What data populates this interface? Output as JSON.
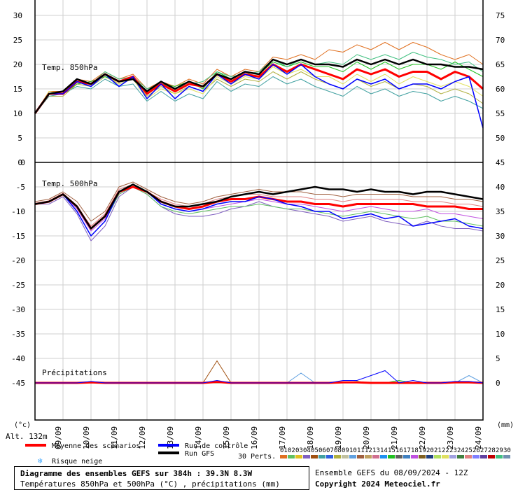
{
  "title": "Diagramme des ensembles GEFS sur 384h : 39.3N 8.3W",
  "subtitle": "Températures 850hPa et 500hPa (°C) , précipitations (mm)",
  "ensemble_info": "Ensemble GEFS du 08/09/2024 - 12Z",
  "copyright": "Copyright 2024 Meteociel.fr",
  "altitude": "Alt. 132m",
  "unit_left": "(°c)",
  "unit_right": "(mm)",
  "legend": {
    "mean": "Moyenne des scénarios",
    "control": "Run de contrôle",
    "gfs": "Run GFS",
    "snow": "Risque neige",
    "perts": "30 Perts."
  },
  "colors": {
    "mean": "#ff0000",
    "control": "#0000ff",
    "gfs": "#000000",
    "snow": "#44aaff",
    "members": [
      "#e07020",
      "#60c060",
      "#e0c020",
      "#8060c0",
      "#a05010",
      "#40a0a0",
      "#3060e0",
      "#b0b040",
      "#c0c0a0",
      "#60a0e0",
      "#a06040",
      "#c0a060",
      "#d07090",
      "#2090f0",
      "#20c020",
      "#606060",
      "#4080c0",
      "#c050e0",
      "#806020",
      "#204080",
      "#b0e060",
      "#e0e060",
      "#a0a0e0",
      "#408040",
      "#e08080",
      "#8080ff",
      "#6040a0",
      "#c00000",
      "#40c080",
      "#7090b0"
    ]
  },
  "dates": [
    "09/09",
    "10/09",
    "11/09",
    "12/09",
    "13/09",
    "14/09",
    "15/09",
    "16/09",
    "17/09",
    "18/09",
    "19/09",
    "20/09",
    "21/09",
    "22/09",
    "23/09",
    "24/09"
  ],
  "pert_labels": [
    "01",
    "02",
    "03",
    "04",
    "05",
    "06",
    "07",
    "08",
    "09",
    "10",
    "11",
    "12",
    "13",
    "14",
    "15",
    "16",
    "17",
    "18",
    "19",
    "20",
    "21",
    "22",
    "23",
    "24",
    "25",
    "26",
    "27",
    "28",
    "29",
    "30"
  ],
  "chart_data": [
    {
      "type": "line",
      "title": "Temp. 850hPa",
      "ylim": [
        0,
        30
      ],
      "yticks_left": [
        0,
        5,
        10,
        15,
        20,
        25,
        30
      ],
      "yticks_right": [
        50,
        55,
        60,
        65,
        70,
        75
      ],
      "x_unit": "day index (0 = 08/09 12Z)",
      "x": [
        0,
        0.5,
        1,
        1.5,
        2,
        2.5,
        3,
        3.5,
        4,
        4.5,
        5,
        5.5,
        6,
        6.5,
        7,
        7.5,
        8,
        8.5,
        9,
        9.5,
        10,
        10.5,
        11,
        11.5,
        12,
        12.5,
        13,
        13.5,
        14,
        14.5,
        15,
        15.5,
        16
      ],
      "series": [
        {
          "name": "Moyenne des scénarios",
          "values": [
            10,
            14,
            14,
            16.5,
            16,
            18,
            16.5,
            17.5,
            14,
            16,
            14.5,
            16,
            15.5,
            18,
            16.5,
            18,
            17.5,
            20,
            18.5,
            20,
            19,
            18,
            17,
            19,
            18,
            19,
            17.5,
            18.5,
            18.5,
            17,
            18.5,
            17.5,
            15
          ]
        },
        {
          "name": "Run de contrôle",
          "values": [
            10,
            14,
            14,
            16.5,
            15.5,
            18,
            15.5,
            17.5,
            13,
            16,
            13,
            15.5,
            14.5,
            18,
            16,
            18,
            17,
            20,
            18,
            20,
            17.5,
            16,
            15,
            17,
            16,
            17,
            15,
            16,
            16,
            15,
            16.5,
            17.5,
            7
          ]
        },
        {
          "name": "Run GFS",
          "values": [
            10,
            14,
            14.5,
            17,
            16,
            18,
            16.5,
            17,
            14.5,
            16.5,
            15,
            16.5,
            15.5,
            18,
            17,
            18.5,
            18,
            21,
            20,
            21,
            20,
            20,
            19.5,
            21,
            20,
            21,
            20,
            21,
            20,
            20,
            19.5,
            19.5,
            19
          ]
        },
        {
          "name": "",
          "values": [
            10,
            14.5,
            14.5,
            17,
            16.5,
            18.5,
            17,
            18,
            15,
            16.5,
            15.5,
            17,
            16,
            19,
            17.5,
            19,
            18.5,
            21.5,
            21,
            22,
            21,
            23,
            22.5,
            24,
            23,
            24.5,
            23,
            24.5,
            23.5,
            22,
            21,
            22,
            20
          ]
        },
        {
          "name": "",
          "values": [
            10,
            13.5,
            13.5,
            16,
            15.5,
            17.5,
            16,
            17,
            13.5,
            15.5,
            14,
            15.5,
            14.5,
            17,
            15.5,
            17,
            16.5,
            18.5,
            17,
            18.5,
            17,
            16,
            15,
            17,
            15.5,
            16.5,
            15,
            16,
            15.5,
            14,
            15,
            14,
            12
          ]
        },
        {
          "name": "",
          "values": [
            10,
            14,
            14,
            16,
            16.5,
            17.5,
            16.5,
            17.5,
            14.5,
            16,
            15.5,
            16.5,
            15,
            18.5,
            17,
            18.5,
            18,
            20.5,
            19.5,
            20.5,
            19.5,
            19.5,
            18.5,
            20.5,
            19,
            20.5,
            19,
            20,
            20,
            19,
            20.5,
            19,
            17.5
          ]
        },
        {
          "name": "",
          "values": [
            10,
            14.5,
            14,
            16.5,
            15.5,
            18,
            16,
            17,
            13,
            15,
            14,
            15,
            14,
            17.5,
            16,
            17.5,
            17,
            19.5,
            18,
            19,
            17.5,
            17.5,
            16,
            18,
            16.5,
            18,
            16,
            17.5,
            16.5,
            15.5,
            16.5,
            15.5,
            13.5
          ]
        },
        {
          "name": "",
          "values": [
            10,
            14,
            14.5,
            16.5,
            16,
            18.5,
            17,
            17.5,
            15,
            16,
            15,
            16,
            16.5,
            18.5,
            17.5,
            18,
            18.5,
            21,
            19.5,
            21,
            20,
            20.5,
            20,
            22,
            21,
            22,
            21,
            22.5,
            21.5,
            21,
            20,
            20.5,
            18.5
          ]
        },
        {
          "name": "",
          "values": [
            10,
            13.5,
            14,
            15.5,
            15,
            17,
            15.5,
            16,
            12.5,
            14.5,
            12.5,
            14,
            13,
            16.5,
            14.5,
            16,
            15.5,
            17.5,
            16,
            17,
            15.5,
            14.5,
            13.5,
            15.5,
            14,
            15,
            13.5,
            14.5,
            14,
            12.5,
            13.5,
            12.5,
            11
          ]
        }
      ]
    },
    {
      "type": "line",
      "title": "Temp. 500hPa",
      "ylim": [
        -45,
        0
      ],
      "yticks_left": [
        0,
        -5,
        -10,
        -15,
        -20,
        -25,
        -30,
        -35,
        -40,
        -45
      ],
      "yticks_right": [
        0,
        5,
        10,
        15,
        20,
        25,
        30,
        35,
        40,
        45
      ],
      "x_unit": "day index (0 = 08/09 12Z)",
      "x": [
        0,
        0.5,
        1,
        1.5,
        2,
        2.5,
        3,
        3.5,
        4,
        4.5,
        5,
        5.5,
        6,
        6.5,
        7,
        7.5,
        8,
        8.5,
        9,
        9.5,
        10,
        10.5,
        11,
        11.5,
        12,
        12.5,
        13,
        13.5,
        14,
        14.5,
        15,
        15.5,
        16
      ],
      "series": [
        {
          "name": "Moyenne des scénarios",
          "values": [
            -8.5,
            -8,
            -6.5,
            -9,
            -13.5,
            -11,
            -6,
            -5,
            -6,
            -8,
            -9,
            -9.5,
            -9,
            -8,
            -7.5,
            -7.5,
            -7,
            -7.5,
            -8,
            -8,
            -8.5,
            -8.5,
            -9,
            -8.5,
            -8.5,
            -8.5,
            -8.5,
            -8.5,
            -9,
            -9,
            -9,
            -9.5,
            -9.5
          ]
        },
        {
          "name": "Run de contrôle",
          "values": [
            -8.5,
            -8,
            -6.5,
            -10,
            -15,
            -12,
            -6,
            -4.5,
            -6,
            -8.5,
            -9.5,
            -10,
            -9.5,
            -8.5,
            -8,
            -8,
            -7,
            -7.5,
            -8.5,
            -9,
            -10,
            -10,
            -11.5,
            -11,
            -10.5,
            -11.5,
            -11,
            -13,
            -12.5,
            -12,
            -11.5,
            -13,
            -13.5
          ]
        },
        {
          "name": "Run GFS",
          "values": [
            -8.5,
            -8,
            -6.5,
            -9,
            -13.5,
            -11,
            -6,
            -4.5,
            -6,
            -8,
            -9,
            -9,
            -8.5,
            -8,
            -7,
            -6.5,
            -6,
            -6.5,
            -6,
            -5.5,
            -5,
            -5.5,
            -5.5,
            -6,
            -5.5,
            -6,
            -6,
            -6.5,
            -6,
            -6,
            -6.5,
            -7,
            -7.5
          ]
        },
        {
          "name": "",
          "values": [
            -8.5,
            -8.5,
            -7,
            -10.5,
            -16,
            -13,
            -7,
            -5,
            -6.5,
            -9,
            -10.5,
            -11,
            -11,
            -10.5,
            -9.5,
            -9,
            -8,
            -9,
            -9.5,
            -10,
            -10.5,
            -11,
            -12,
            -11.5,
            -11,
            -12,
            -12.5,
            -13,
            -12,
            -13,
            -13.5,
            -13.5,
            -14
          ]
        },
        {
          "name": "",
          "values": [
            -8,
            -7.5,
            -6,
            -8,
            -12,
            -10,
            -5,
            -4,
            -5.5,
            -7,
            -8,
            -8.5,
            -8,
            -7,
            -6.5,
            -6,
            -5.5,
            -6,
            -6,
            -6,
            -6.5,
            -6.5,
            -7,
            -6.5,
            -6.5,
            -6.5,
            -6.5,
            -7,
            -7,
            -7,
            -7.5,
            -7.5,
            -8
          ]
        },
        {
          "name": "",
          "values": [
            -8.5,
            -8,
            -6.5,
            -9.5,
            -14,
            -11.5,
            -6.5,
            -5,
            -6,
            -8.5,
            -9.5,
            -10,
            -9.5,
            -9,
            -8.5,
            -8,
            -7.5,
            -8,
            -8.5,
            -8.5,
            -9,
            -9.5,
            -10,
            -9.5,
            -9,
            -9.5,
            -10,
            -10,
            -9.5,
            -10.5,
            -10.5,
            -11,
            -11.5
          ]
        },
        {
          "name": "",
          "values": [
            -8.5,
            -8,
            -6.5,
            -9,
            -13,
            -10.5,
            -5.5,
            -4.5,
            -6,
            -7.5,
            -8.5,
            -9,
            -8.5,
            -7.5,
            -7,
            -6.5,
            -6.5,
            -7,
            -7,
            -7,
            -7.5,
            -7.5,
            -8,
            -7.5,
            -7.5,
            -7.5,
            -7.5,
            -8,
            -8,
            -8,
            -8.5,
            -8.5,
            -9
          ]
        },
        {
          "name": "",
          "values": [
            -8.5,
            -8,
            -6.5,
            -10,
            -15,
            -12,
            -6.5,
            -5,
            -6.5,
            -9,
            -10,
            -10.5,
            -10,
            -9.5,
            -9,
            -9,
            -8.5,
            -9,
            -9.5,
            -9.5,
            -10,
            -10.5,
            -11,
            -10.5,
            -10,
            -10.5,
            -11,
            -11.5,
            -11,
            -12,
            -12,
            -12.5,
            -13
          ]
        }
      ]
    },
    {
      "type": "line",
      "title": "Précipitations",
      "ylim": [
        0,
        15
      ],
      "yticks_left": [
        -45
      ],
      "yticks_right": [
        0,
        5
      ],
      "x_unit": "day index (0 = 08/09 12Z)",
      "x": [
        0,
        0.5,
        1,
        1.5,
        2,
        2.5,
        3,
        3.5,
        4,
        4.5,
        5,
        5.5,
        6,
        6.5,
        7,
        7.5,
        8,
        8.5,
        9,
        9.5,
        10,
        10.5,
        11,
        11.5,
        12,
        12.5,
        13,
        13.5,
        14,
        14.5,
        15,
        15.5,
        16
      ],
      "series": [
        {
          "name": "Moyenne des scénarios",
          "values": [
            0,
            0,
            0,
            0,
            0.1,
            0,
            0,
            0,
            0,
            0,
            0,
            0,
            0,
            0.2,
            0,
            0,
            0,
            0,
            0,
            0,
            0,
            0,
            0.1,
            0.1,
            0,
            0,
            0,
            0,
            0,
            0,
            0.1,
            0.1,
            0
          ]
        },
        {
          "name": "Run de contrôle",
          "values": [
            0,
            0,
            0,
            0,
            0.3,
            0,
            0,
            0,
            0,
            0,
            0,
            0,
            0,
            0.5,
            0,
            0,
            0,
            0,
            0,
            0,
            0,
            0,
            0.5,
            0.5,
            1.5,
            2.5,
            0,
            0.5,
            0,
            0,
            0.3,
            0.3,
            0
          ]
        },
        {
          "name": "",
          "values": [
            0,
            0,
            0,
            0,
            0,
            0,
            0,
            0,
            0,
            0,
            0,
            0,
            0,
            4.5,
            0,
            0,
            0,
            0,
            0,
            0,
            0,
            0,
            0,
            0,
            0,
            0,
            0,
            0,
            0,
            0,
            0,
            0,
            0
          ]
        },
        {
          "name": "",
          "values": [
            0,
            0,
            0,
            0,
            0,
            0,
            0,
            0,
            0,
            0,
            0,
            0,
            0,
            0,
            0,
            0,
            0,
            0,
            0,
            2,
            0,
            0,
            0,
            0,
            0,
            0,
            0,
            0,
            0,
            0,
            0,
            1.5,
            0
          ]
        },
        {
          "name": "",
          "values": [
            0,
            0,
            0,
            0,
            0,
            0,
            0,
            0,
            0,
            0,
            0,
            0,
            0,
            0,
            0,
            0,
            0,
            0,
            0,
            0,
            0,
            0,
            0,
            0.3,
            0,
            0,
            0.5,
            0,
            0,
            0,
            0,
            0,
            0
          ]
        }
      ]
    }
  ]
}
